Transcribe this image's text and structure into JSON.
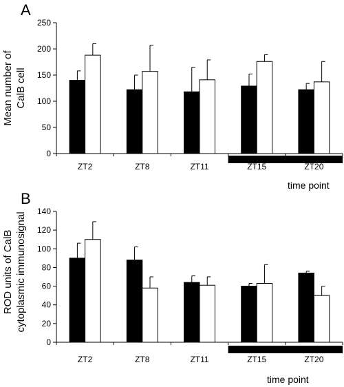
{
  "colors": {
    "series_dark": "#000000",
    "series_light": "#ffffff",
    "axis": "#000000"
  },
  "chart_data": [
    {
      "type": "bar",
      "panel_label": "A",
      "ylabel_lines": [
        "Mean number of",
        "CalB cell"
      ],
      "xlabel": "time point",
      "categories": [
        "ZT2",
        "ZT8",
        "ZT11",
        "ZT15",
        "ZT20"
      ],
      "ylim": [
        0,
        250
      ],
      "yticks": [
        0,
        50,
        100,
        150,
        200,
        250
      ],
      "dark_phase_categories": [
        "ZT15",
        "ZT20"
      ],
      "series": [
        {
          "color": "#000000",
          "values": [
            140,
            122,
            118,
            129,
            122
          ],
          "errors": [
            18,
            28,
            47,
            23,
            12
          ]
        },
        {
          "color": "#ffffff",
          "values": [
            188,
            157,
            141,
            176,
            137
          ],
          "errors": [
            22,
            50,
            38,
            13,
            39
          ]
        }
      ],
      "grid": false,
      "legend": "none"
    },
    {
      "type": "bar",
      "panel_label": "B",
      "ylabel_lines": [
        "ROD units of CalB",
        "cytoplasmic immunosignal"
      ],
      "xlabel": "time point",
      "categories": [
        "ZT2",
        "ZT8",
        "ZT11",
        "ZT15",
        "ZT20"
      ],
      "ylim": [
        0,
        140
      ],
      "yticks": [
        0,
        20,
        40,
        60,
        80,
        100,
        120,
        140
      ],
      "dark_phase_categories": [
        "ZT15",
        "ZT20"
      ],
      "series": [
        {
          "color": "#000000",
          "values": [
            90,
            88,
            64,
            60,
            74
          ],
          "errors": [
            16,
            14,
            7,
            3,
            2
          ]
        },
        {
          "color": "#ffffff",
          "values": [
            110,
            58,
            61,
            63,
            50
          ],
          "errors": [
            19,
            12,
            9,
            20,
            10
          ]
        }
      ],
      "grid": false,
      "legend": "none"
    }
  ]
}
